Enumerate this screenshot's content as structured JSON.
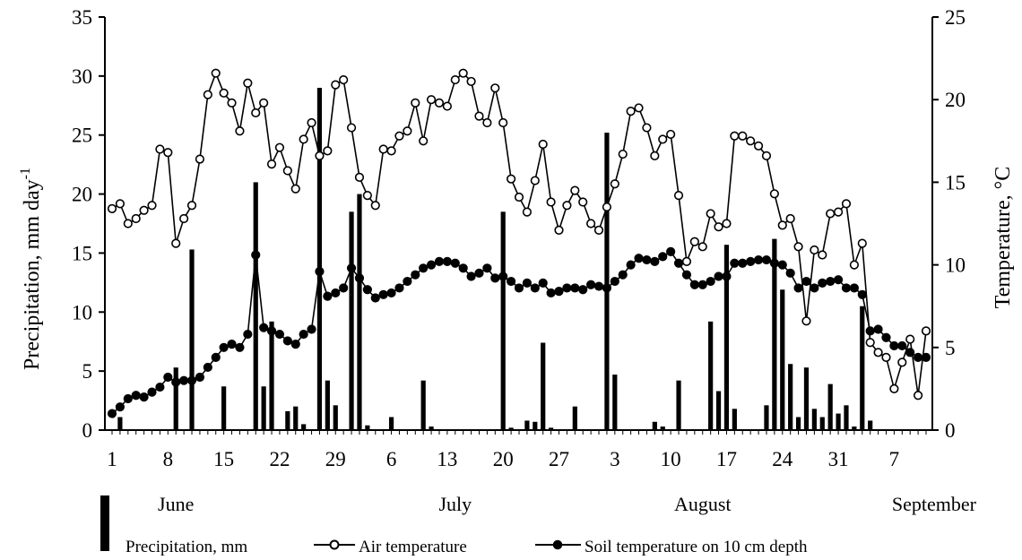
{
  "chart_data": {
    "type": "bar+line",
    "y_left": {
      "label": "Precipitation, mm day",
      "label_superscript": "-1",
      "ticks": [
        "0",
        "5",
        "10",
        "15",
        "20",
        "25",
        "30",
        "35"
      ],
      "range": [
        0,
        35
      ]
    },
    "y_right": {
      "label": "Temperature, °C",
      "ticks": [
        "0",
        "5",
        "10",
        "15",
        "20",
        "25"
      ],
      "range": [
        0,
        25
      ]
    },
    "x_ticks": [
      {
        "day": 1,
        "label": "1"
      },
      {
        "day": 8,
        "label": "8"
      },
      {
        "day": 15,
        "label": "15"
      },
      {
        "day": 22,
        "label": "22"
      },
      {
        "day": 29,
        "label": "29"
      },
      {
        "day": 36,
        "label": "6"
      },
      {
        "day": 43,
        "label": "13"
      },
      {
        "day": 50,
        "label": "20"
      },
      {
        "day": 57,
        "label": "27"
      },
      {
        "day": 64,
        "label": "3"
      },
      {
        "day": 71,
        "label": "10"
      },
      {
        "day": 78,
        "label": "17"
      },
      {
        "day": 85,
        "label": "24"
      },
      {
        "day": 92,
        "label": "31"
      },
      {
        "day": 99,
        "label": "7"
      }
    ],
    "months": [
      {
        "label": "June",
        "day": 9
      },
      {
        "label": "July",
        "day": 44
      },
      {
        "label": "August",
        "day": 75
      },
      {
        "label": "September",
        "day": 104
      }
    ],
    "days": 103,
    "series": [
      {
        "name": "Precipitation, mm",
        "kind": "bar",
        "axis": "left",
        "points": [
          [
            2,
            1.1
          ],
          [
            9,
            5.3
          ],
          [
            11,
            15.3
          ],
          [
            15,
            3.7
          ],
          [
            19,
            21.0
          ],
          [
            20,
            3.7
          ],
          [
            21,
            9.2
          ],
          [
            23,
            1.6
          ],
          [
            24,
            2.0
          ],
          [
            25,
            0.5
          ],
          [
            27,
            29.0
          ],
          [
            28,
            4.2
          ],
          [
            29,
            2.1
          ],
          [
            31,
            18.5
          ],
          [
            32,
            20.0
          ],
          [
            33,
            0.4
          ],
          [
            36,
            1.1
          ],
          [
            40,
            4.2
          ],
          [
            41,
            0.3
          ],
          [
            50,
            18.5
          ],
          [
            51,
            0.2
          ],
          [
            53,
            0.8
          ],
          [
            54,
            0.7
          ],
          [
            55,
            7.4
          ],
          [
            56,
            0.2
          ],
          [
            59,
            2.0
          ],
          [
            63,
            25.2
          ],
          [
            64,
            4.7
          ],
          [
            69,
            0.7
          ],
          [
            70,
            0.3
          ],
          [
            72,
            4.2
          ],
          [
            76,
            9.2
          ],
          [
            77,
            3.3
          ],
          [
            78,
            15.7
          ],
          [
            79,
            1.8
          ],
          [
            83,
            2.1
          ],
          [
            84,
            16.2
          ],
          [
            85,
            11.9
          ],
          [
            86,
            5.6
          ],
          [
            87,
            1.1
          ],
          [
            88,
            5.3
          ],
          [
            89,
            1.8
          ],
          [
            90,
            1.1
          ],
          [
            91,
            3.9
          ],
          [
            92,
            1.4
          ],
          [
            93,
            2.1
          ],
          [
            94,
            0.3
          ],
          [
            95,
            10.5
          ],
          [
            96,
            0.8
          ]
        ]
      },
      {
        "name": "Air temperature",
        "kind": "line",
        "marker": "open-circle",
        "axis": "right",
        "values": [
          13.4,
          13.7,
          12.5,
          12.8,
          13.3,
          13.6,
          17.0,
          16.8,
          11.3,
          12.8,
          13.6,
          16.4,
          20.3,
          21.6,
          20.4,
          19.8,
          18.1,
          21.0,
          19.2,
          19.8,
          16.1,
          17.1,
          15.7,
          14.6,
          17.6,
          18.6,
          16.6,
          16.9,
          20.9,
          21.2,
          18.3,
          15.3,
          14.2,
          13.6,
          17.0,
          16.9,
          17.8,
          18.1,
          19.8,
          17.5,
          20.0,
          19.8,
          19.6,
          21.2,
          21.6,
          21.1,
          19.0,
          18.6,
          20.7,
          18.6,
          15.2,
          14.1,
          13.2,
          15.1,
          17.3,
          13.8,
          12.1,
          13.6,
          14.5,
          13.8,
          12.5,
          12.1,
          13.5,
          14.9,
          16.7,
          19.3,
          19.5,
          18.3,
          16.6,
          17.6,
          17.9,
          14.2,
          10.2,
          11.4,
          11.1,
          13.1,
          12.3,
          12.5,
          17.8,
          17.8,
          17.5,
          17.2,
          16.6,
          14.3,
          12.4,
          12.8,
          11.1,
          6.6,
          10.9,
          10.6,
          13.1,
          13.2,
          13.7,
          10.0,
          11.3,
          5.3,
          4.7,
          4.4,
          2.5,
          4.1,
          5.5,
          2.1,
          6.0
        ]
      },
      {
        "name": "Soil temperature on 10 cm depth",
        "kind": "line",
        "marker": "filled-circle",
        "axis": "right",
        "values": [
          1.0,
          1.4,
          1.9,
          2.1,
          2.0,
          2.3,
          2.6,
          3.2,
          2.9,
          3.0,
          3.0,
          3.2,
          3.8,
          4.4,
          5.0,
          5.2,
          5.0,
          5.8,
          10.6,
          6.2,
          6.0,
          5.8,
          5.4,
          5.2,
          5.8,
          6.1,
          9.6,
          8.1,
          8.3,
          8.6,
          9.8,
          9.2,
          8.5,
          8.0,
          8.2,
          8.3,
          8.6,
          9.0,
          9.4,
          9.8,
          10.0,
          10.2,
          10.2,
          10.1,
          9.8,
          9.3,
          9.5,
          9.8,
          9.2,
          9.3,
          9.0,
          8.6,
          8.9,
          8.6,
          8.9,
          8.3,
          8.4,
          8.6,
          8.6,
          8.5,
          8.8,
          8.7,
          8.6,
          9.0,
          9.4,
          10.0,
          10.4,
          10.3,
          10.2,
          10.5,
          10.8,
          10.1,
          9.4,
          8.8,
          8.8,
          9.0,
          9.3,
          9.3,
          10.1,
          10.1,
          10.2,
          10.3,
          10.3,
          10.1,
          10.0,
          9.5,
          8.6,
          9.0,
          8.6,
          8.9,
          9.0,
          9.1,
          8.6,
          8.6,
          8.2,
          6.0,
          6.1,
          5.6,
          5.1,
          5.1,
          4.7,
          4.4,
          4.4
        ]
      }
    ],
    "legend": [
      {
        "name": "Precipitation, mm",
        "marker": "bar"
      },
      {
        "name": "Air temperature",
        "marker": "open-circle"
      },
      {
        "name": "Soil temperature on 10 cm depth",
        "marker": "filled-circle"
      }
    ]
  }
}
